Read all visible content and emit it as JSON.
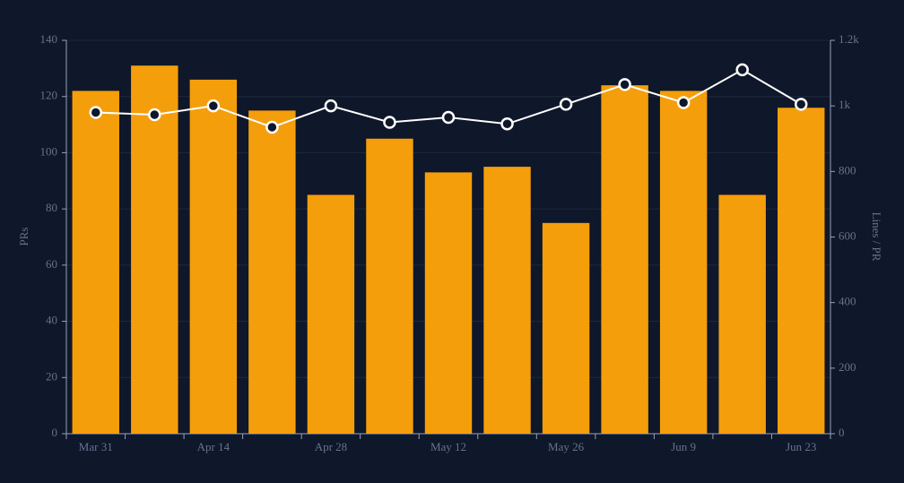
{
  "chart_data": {
    "type": "combo",
    "categories": [
      "Mar 31",
      null,
      "Apr 14",
      null,
      "Apr 28",
      null,
      "May 12",
      null,
      "May 26",
      null,
      "Jun 9",
      null,
      "Jun 23"
    ],
    "ylabel": "PRs",
    "y2label": "Lines / PR",
    "ylim": [
      0,
      140
    ],
    "yticks": [
      0,
      20,
      40,
      60,
      80,
      100,
      120,
      140
    ],
    "y2lim": [
      0,
      1200
    ],
    "y2ticks": [
      0,
      200,
      400,
      600,
      800,
      {
        "value": 1000,
        "label": "1k"
      },
      {
        "value": 1200,
        "label": "1.2k"
      }
    ],
    "grid": true,
    "series": [
      {
        "type": "bar",
        "color": "#f59e0b",
        "values": [
          122,
          131,
          126,
          115,
          85,
          105,
          93,
          95,
          75,
          124,
          122,
          85,
          116
        ]
      },
      {
        "type": "line",
        "axis": "y2",
        "color": "#ffffff",
        "values": [
          980,
          973,
          1000,
          935,
          1000,
          950,
          965,
          945,
          1005,
          1065,
          1010,
          1110,
          1005
        ]
      }
    ]
  }
}
